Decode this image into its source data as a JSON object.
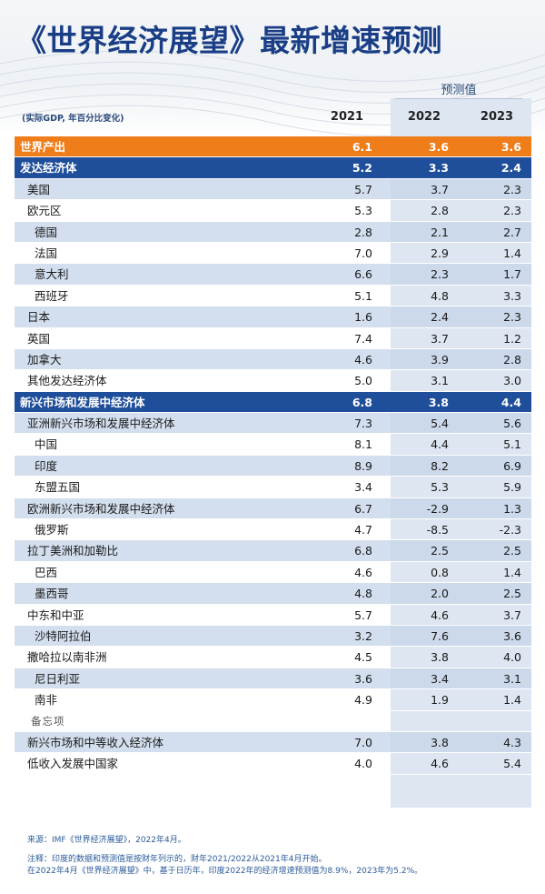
{
  "title": "《世界经济展望》最新增速预测",
  "header": {
    "unit_note": "(实际GDP, 年百分比变化)",
    "forecast_label": "预测值",
    "years": [
      "2021",
      "2022",
      "2023"
    ]
  },
  "rows": [
    {
      "label": "世界产出",
      "v": [
        "6.1",
        "3.6",
        "3.6"
      ]
    },
    {
      "label": "发达经济体",
      "v": [
        "5.2",
        "3.3",
        "2.4"
      ]
    },
    {
      "label": "美国",
      "v": [
        "5.7",
        "3.7",
        "2.3"
      ]
    },
    {
      "label": "欧元区",
      "v": [
        "5.3",
        "2.8",
        "2.3"
      ]
    },
    {
      "label": "德国",
      "v": [
        "2.8",
        "2.1",
        "2.7"
      ]
    },
    {
      "label": "法国",
      "v": [
        "7.0",
        "2.9",
        "1.4"
      ]
    },
    {
      "label": "意大利",
      "v": [
        "6.6",
        "2.3",
        "1.7"
      ]
    },
    {
      "label": "西班牙",
      "v": [
        "5.1",
        "4.8",
        "3.3"
      ]
    },
    {
      "label": "日本",
      "v": [
        "1.6",
        "2.4",
        "2.3"
      ]
    },
    {
      "label": "英国",
      "v": [
        "7.4",
        "3.7",
        "1.2"
      ]
    },
    {
      "label": "加拿大",
      "v": [
        "4.6",
        "3.9",
        "2.8"
      ]
    },
    {
      "label": "其他发达经济体",
      "v": [
        "5.0",
        "3.1",
        "3.0"
      ]
    },
    {
      "label": "新兴市场和发展中经济体",
      "v": [
        "6.8",
        "3.8",
        "4.4"
      ]
    },
    {
      "label": "亚洲新兴市场和发展中经济体",
      "v": [
        "7.3",
        "5.4",
        "5.6"
      ]
    },
    {
      "label": "中国",
      "v": [
        "8.1",
        "4.4",
        "5.1"
      ]
    },
    {
      "label": "印度",
      "v": [
        "8.9",
        "8.2",
        "6.9"
      ]
    },
    {
      "label": "东盟五国",
      "v": [
        "3.4",
        "5.3",
        "5.9"
      ]
    },
    {
      "label": "欧洲新兴市场和发展中经济体",
      "v": [
        "6.7",
        "-2.9",
        "1.3"
      ]
    },
    {
      "label": "俄罗斯",
      "v": [
        "4.7",
        "-8.5",
        "-2.3"
      ]
    },
    {
      "label": "拉丁美洲和加勒比",
      "v": [
        "6.8",
        "2.5",
        "2.5"
      ]
    },
    {
      "label": "巴西",
      "v": [
        "4.6",
        "0.8",
        "1.4"
      ]
    },
    {
      "label": "墨西哥",
      "v": [
        "4.8",
        "2.0",
        "2.5"
      ]
    },
    {
      "label": "中东和中亚",
      "v": [
        "5.7",
        "4.6",
        "3.7"
      ]
    },
    {
      "label": "沙特阿拉伯",
      "v": [
        "3.2",
        "7.6",
        "3.6"
      ]
    },
    {
      "label": "撒哈拉以南非洲",
      "v": [
        "4.5",
        "3.8",
        "4.0"
      ]
    },
    {
      "label": "尼日利亚",
      "v": [
        "3.6",
        "3.4",
        "3.1"
      ]
    },
    {
      "label": "南非",
      "v": [
        "4.9",
        "1.9",
        "1.4"
      ]
    },
    {
      "label": "备忘项",
      "v": [
        "",
        "",
        ""
      ]
    },
    {
      "label": "新兴市场和中等收入经济体",
      "v": [
        "7.0",
        "3.8",
        "4.3"
      ]
    },
    {
      "label": "低收入发展中国家",
      "v": [
        "4.0",
        "4.6",
        "5.4"
      ]
    }
  ],
  "notes": {
    "source": "来源：IMF《世界经济展望》，2022年4月。",
    "note1": "注释：印度的数据和预测值是按财年列示的，财年2021/2022从2021年4月开始。",
    "note2": "在2022年4月《世界经济展望》中，基于日历年，印度2022年的经济增速预测值为8.9%，2023年为5.2%。"
  },
  "colors": {
    "title": "#1a3e86",
    "world_row": "#ef7d1a",
    "group_row": "#1f4e9a",
    "shade_row": "#c4d4e8",
    "forecast_bg": "#dde6f1"
  }
}
